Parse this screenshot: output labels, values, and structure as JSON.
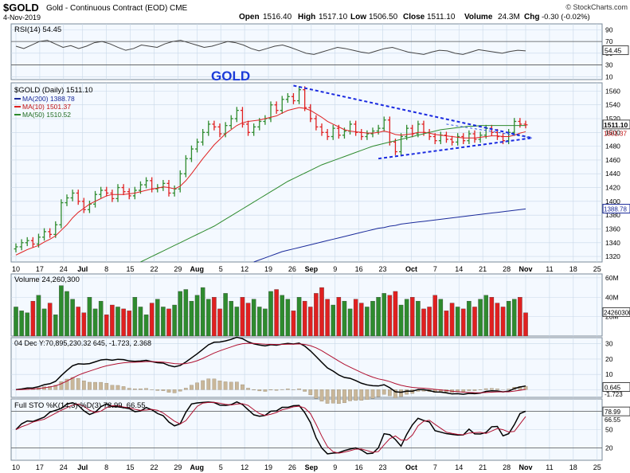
{
  "header": {
    "symbol": "$GOLD",
    "name": "Gold - Continuous Contract (EOD)",
    "exchange": "CME",
    "date": "4-Nov-2019",
    "open_label": "Open",
    "open": "1516.40",
    "high_label": "High",
    "high": "1517.10",
    "low_label": "Low",
    "low": "1506.50",
    "close_label": "Close",
    "close": "1511.10",
    "volume_label": "Volume",
    "volume": "24.3M",
    "chg_label": "Chg",
    "chg": "-0.30 (-0.02%)",
    "brand": "© StockCharts.com"
  },
  "colors": {
    "up": "#2e8b2e",
    "down": "#e02020",
    "ma10": "#e02020",
    "ma50": "#2e8b2e",
    "ma200": "#1a2a9a",
    "trend": "#1a2ae0",
    "panel_bg": "#f4f9ff",
    "grid": "#c8d8e8"
  },
  "xaxis": {
    "ticks": [
      "10",
      "17",
      "24",
      "Jul",
      "8",
      "15",
      "22",
      "29",
      "Aug",
      "5",
      "12",
      "19",
      "26",
      "Sep",
      "9",
      "16",
      "23",
      "Oct",
      "7",
      "14",
      "21",
      "28",
      "Nov",
      "11",
      "18",
      "25"
    ],
    "bold": [
      "Jul",
      "Aug",
      "Sep",
      "Oct",
      "Nov"
    ]
  },
  "rsi": {
    "label": "RSI(14) 54.45",
    "last": "54.45",
    "ticks": [
      "90",
      "70",
      "50",
      "30",
      "10"
    ],
    "values": [
      62,
      58,
      64,
      70,
      72,
      66,
      60,
      63,
      58,
      62,
      68,
      70,
      66,
      60,
      55,
      58,
      64,
      62,
      60,
      66,
      70,
      72,
      68,
      64,
      60,
      62,
      66,
      70,
      68,
      64,
      58,
      54,
      58,
      62,
      64,
      60,
      55,
      50,
      48,
      52,
      56,
      60,
      58,
      55,
      52,
      50,
      54,
      58,
      60,
      56,
      52,
      50,
      48,
      52,
      55,
      54,
      50,
      48,
      52,
      56,
      54,
      52,
      50,
      53,
      55,
      54
    ]
  },
  "price": {
    "label": "$GOLD (Daily) 1511.10",
    "ma200_label": "MA(200) 1388.78",
    "ma10_label": "MA(10) 1501.37",
    "ma50_label": "MA(50) 1510.52",
    "annotation": "GOLD",
    "last": "1511.10",
    "ma10_last": "1501.37",
    "ma200_last": "1388.78",
    "ticks": [
      "1560",
      "1540",
      "1520",
      "1500",
      "1480",
      "1460",
      "1440",
      "1420",
      "1400",
      "1380",
      "1360",
      "1340",
      "1320"
    ],
    "ylim": [
      1312,
      1572
    ],
    "closes": [
      1334,
      1340,
      1343,
      1338,
      1348,
      1356,
      1352,
      1366,
      1398,
      1405,
      1412,
      1400,
      1388,
      1396,
      1410,
      1416,
      1412,
      1404,
      1420,
      1414,
      1408,
      1416,
      1424,
      1430,
      1418,
      1420,
      1426,
      1412,
      1418,
      1440,
      1462,
      1476,
      1486,
      1500,
      1512,
      1508,
      1498,
      1510,
      1520,
      1532,
      1512,
      1500,
      1508,
      1516,
      1520,
      1540,
      1532,
      1548,
      1552,
      1546,
      1562,
      1536,
      1520,
      1508,
      1500,
      1494,
      1506,
      1496,
      1502,
      1512,
      1500,
      1494,
      1498,
      1502,
      1506,
      1518,
      1486,
      1472,
      1494,
      1506,
      1498,
      1512,
      1500,
      1494,
      1488,
      1496,
      1490,
      1486,
      1494,
      1488,
      1498,
      1490,
      1496,
      1506,
      1500,
      1494,
      1488,
      1500,
      1516,
      1512,
      1511
    ],
    "ma10": [
      1322,
      1326,
      1330,
      1333,
      1336,
      1341,
      1345,
      1350,
      1358,
      1366,
      1376,
      1384,
      1390,
      1396,
      1400,
      1404,
      1408,
      1410,
      1410,
      1410,
      1411,
      1412,
      1414,
      1416,
      1418,
      1419,
      1421,
      1420,
      1418,
      1422,
      1430,
      1440,
      1451,
      1462,
      1472,
      1482,
      1490,
      1498,
      1504,
      1510,
      1514,
      1516,
      1517,
      1518,
      1520,
      1522,
      1524,
      1528,
      1532,
      1534,
      1536,
      1535,
      1532,
      1527,
      1522,
      1516,
      1512,
      1508,
      1504,
      1502,
      1501,
      1500,
      1499,
      1499,
      1500,
      1502,
      1500,
      1497,
      1496,
      1497,
      1498,
      1500,
      1500,
      1499,
      1497,
      1496,
      1495,
      1494,
      1493,
      1492,
      1492,
      1492,
      1493,
      1494,
      1495,
      1495,
      1494,
      1494,
      1496,
      1499,
      1501
    ],
    "ma50_start_index": 22,
    "ma50": [
      1312,
      1316,
      1320,
      1324,
      1328,
      1332,
      1336,
      1340,
      1344,
      1348,
      1352,
      1356,
      1360,
      1364,
      1369,
      1374,
      1379,
      1384,
      1389,
      1394,
      1399,
      1404,
      1409,
      1414,
      1419,
      1424,
      1429,
      1433,
      1437,
      1441,
      1445,
      1449,
      1453,
      1456,
      1459,
      1462,
      1465,
      1468,
      1471,
      1474,
      1477,
      1480,
      1482,
      1484,
      1486,
      1488,
      1490,
      1492,
      1494,
      1496,
      1498,
      1500,
      1502,
      1504,
      1505,
      1506,
      1507,
      1508,
      1509,
      1509,
      1510,
      1510,
      1510,
      1510,
      1510,
      1510,
      1510,
      1510,
      1510
    ],
    "ma200_start_index": 42,
    "ma200": [
      1312,
      1315,
      1318,
      1321,
      1324,
      1327,
      1329,
      1331,
      1333,
      1335,
      1337,
      1339,
      1341,
      1343,
      1345,
      1347,
      1349,
      1351,
      1353,
      1355,
      1357,
      1359,
      1361,
      1362,
      1364,
      1365,
      1367,
      1368,
      1369,
      1370,
      1371,
      1372,
      1373,
      1374,
      1375,
      1376,
      1377,
      1378,
      1379,
      1380,
      1381,
      1382,
      1383,
      1384,
      1385,
      1386,
      1387,
      1388,
      1389
    ]
  },
  "volume": {
    "label": "Volume 24,260,300",
    "last": "24260300",
    "ticks": [
      "60M",
      "40M",
      "20M"
    ],
    "ymax": 64,
    "values": [
      30,
      26,
      24,
      36,
      42,
      28,
      34,
      22,
      52,
      46,
      38,
      30,
      24,
      40,
      28,
      36,
      22,
      32,
      30,
      28,
      26,
      40,
      30,
      22,
      34,
      38,
      30,
      28,
      32,
      46,
      48,
      36,
      42,
      50,
      38,
      40,
      28,
      44,
      36,
      30,
      40,
      34,
      38,
      30,
      28,
      46,
      48,
      42,
      38,
      26,
      40,
      36,
      30,
      44,
      50,
      38,
      32,
      40,
      36,
      28,
      38,
      34,
      30,
      36,
      40,
      44,
      42,
      46,
      32,
      38,
      40,
      36,
      28,
      30,
      42,
      38,
      26,
      34,
      30,
      28,
      36,
      30,
      38,
      42,
      40,
      34,
      30,
      36,
      38,
      40,
      24
    ]
  },
  "macd": {
    "label": "04 Dec Y:70,895,230.32 645, -1.723, 2.368",
    "ticks": [
      "30",
      "20",
      "10",
      "0"
    ],
    "last": "0.645",
    "signal_last": "-1.723",
    "ylim": [
      -5,
      34
    ]
  },
  "sto": {
    "label": "Full STO %K(14,3) %D(3) 78.99, 66.55",
    "ticks": [
      "80",
      "50",
      "20"
    ],
    "k_last": "78.99",
    "d_last": "66.55"
  }
}
